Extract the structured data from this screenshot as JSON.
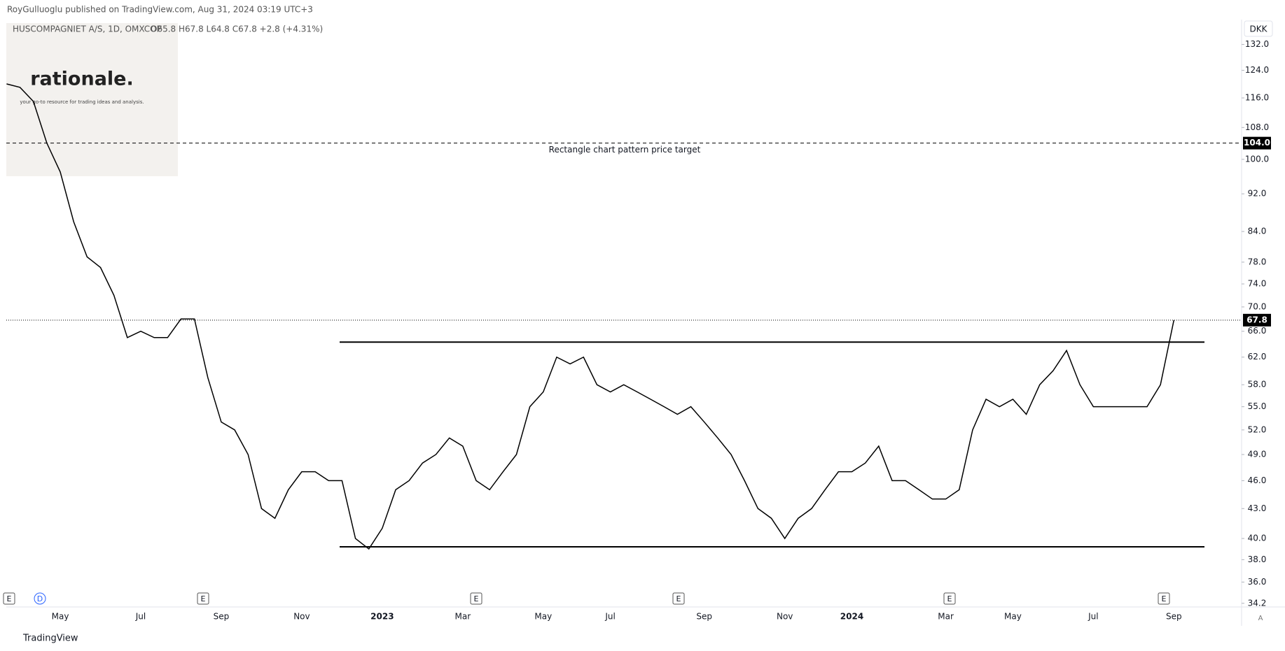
{
  "header": {
    "published": "RoyGulluoglu published on TradingView.com, Aug 31, 2024 03:19 UTC+3",
    "symbol": "HUSCOMPAGNIET A/S, 1D, OMXCOP",
    "ohlc": "O65.8 H67.8 L64.8 C67.8 +2.8 (+4.31%)",
    "currency": "DKK"
  },
  "logo": {
    "name": "rationale.",
    "tagline": "your go-to resource for trading ideas and analysis."
  },
  "footer": {
    "brand": "TradingView",
    "auto": "A"
  },
  "events": [
    "E",
    "D",
    "E",
    "E",
    "E",
    "E",
    "E"
  ],
  "chart_data": {
    "type": "line",
    "color": "#000000",
    "log_scale": true,
    "categories": [
      null,
      null,
      null,
      null,
      "May",
      null,
      null,
      null,
      null,
      null,
      "Jul",
      null,
      null,
      null,
      null,
      null,
      "Sep",
      null,
      null,
      null,
      null,
      null,
      "Nov",
      null,
      null,
      null,
      null,
      null,
      "2023",
      null,
      null,
      null,
      null,
      null,
      "Mar",
      null,
      null,
      null,
      null,
      null,
      "May",
      null,
      null,
      null,
      null,
      "Jul",
      null,
      null,
      null,
      null,
      null,
      null,
      "Sep",
      null,
      null,
      null,
      null,
      null,
      "Nov",
      null,
      null,
      null,
      null,
      "2024",
      null,
      null,
      null,
      null,
      null,
      null,
      "Mar",
      null,
      null,
      null,
      null,
      "May",
      null,
      null,
      null,
      null,
      null,
      "Jul",
      null,
      null,
      null,
      null,
      null,
      "Sep"
    ],
    "values": [
      120,
      119,
      115,
      104,
      97,
      86,
      79,
      77,
      72,
      65,
      66,
      65,
      65,
      68,
      68,
      59,
      53,
      52,
      49,
      43,
      42,
      45,
      47,
      47,
      46,
      46,
      40,
      39,
      41,
      45,
      46,
      48,
      49,
      51,
      50,
      46,
      45,
      47,
      49,
      55,
      57,
      62,
      61,
      62,
      58,
      57,
      58,
      57,
      56,
      55,
      54,
      55,
      53,
      51,
      49,
      46,
      43,
      42,
      40,
      42,
      43,
      45,
      47,
      47,
      48,
      50,
      46,
      46,
      45,
      44,
      44,
      45,
      52,
      56,
      55,
      56,
      54,
      58,
      60,
      63,
      58,
      55,
      55,
      55,
      55,
      55,
      58,
      67.8
    ],
    "ylim": [
      33.9,
      139
    ],
    "yticks": [
      34.2,
      {
        "value": 36,
        "label": "36.0"
      },
      {
        "value": 38,
        "label": "38.0"
      },
      {
        "value": 40,
        "label": "40.0"
      },
      {
        "value": 43,
        "label": "43.0"
      },
      {
        "value": 46,
        "label": "46.0"
      },
      {
        "value": 49,
        "label": "49.0"
      },
      {
        "value": 52,
        "label": "52.0"
      },
      {
        "value": 55,
        "label": "55.0"
      },
      {
        "value": 58,
        "label": "58.0"
      },
      {
        "value": 62,
        "label": "62.0"
      },
      {
        "value": 66,
        "label": "66.0"
      },
      {
        "value": 70,
        "label": "70.0"
      },
      {
        "value": 74,
        "label": "74.0"
      },
      {
        "value": 78,
        "label": "78.0"
      },
      {
        "value": 84,
        "label": "84.0"
      },
      {
        "value": 92,
        "label": "92.0"
      },
      {
        "value": 100,
        "label": "100.0"
      },
      {
        "value": 108,
        "label": "108.0"
      },
      {
        "value": 116,
        "label": "116.0"
      },
      {
        "value": 124,
        "label": "124.0"
      },
      {
        "value": 132,
        "label": "132.0"
      }
    ],
    "levels": [
      64.3,
      39.2
    ],
    "target": {
      "value": 104,
      "label": "104.0",
      "text": "Rectangle chart pattern price target"
    },
    "last_price": {
      "value": 67.8,
      "label": "67.8"
    }
  }
}
